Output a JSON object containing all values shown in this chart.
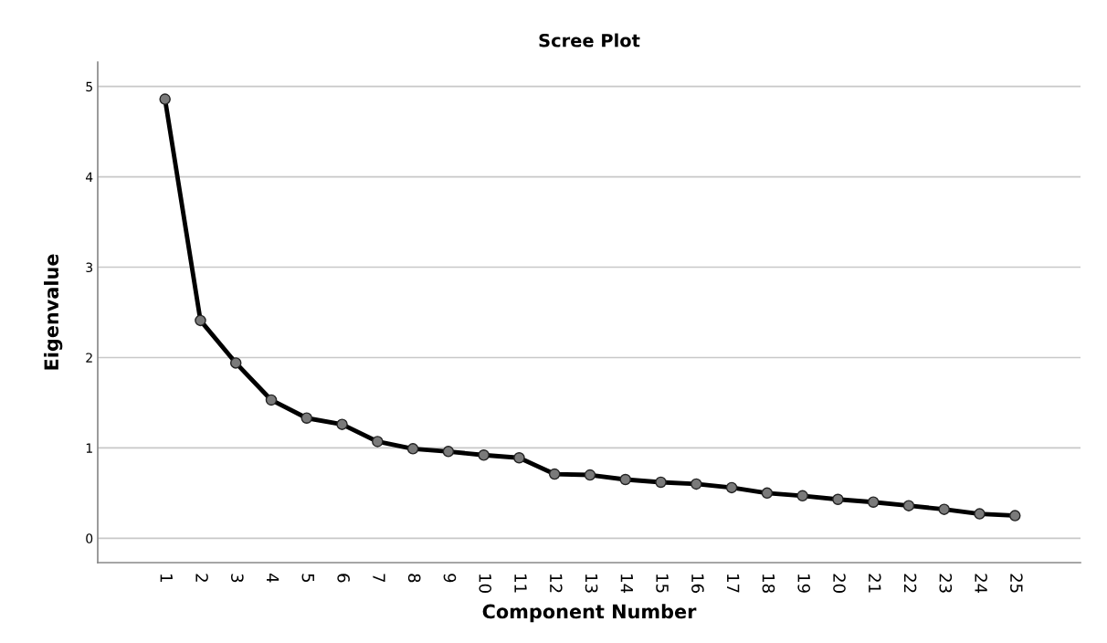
{
  "chart_data": {
    "type": "line",
    "title": "Scree Plot",
    "xlabel": "Component Number",
    "ylabel": "Eigenvalue",
    "categories": [
      "1",
      "2",
      "3",
      "4",
      "5",
      "6",
      "7",
      "8",
      "9",
      "10",
      "11",
      "12",
      "13",
      "14",
      "15",
      "16",
      "17",
      "18",
      "19",
      "20",
      "21",
      "22",
      "23",
      "24",
      "25"
    ],
    "series": [
      {
        "color": "#000000",
        "values": [
          4.86,
          2.41,
          1.94,
          1.53,
          1.33,
          1.26,
          1.07,
          0.99,
          0.96,
          0.92,
          0.89,
          0.71,
          0.7,
          0.65,
          0.62,
          0.6,
          0.56,
          0.5,
          0.47,
          0.43,
          0.4,
          0.36,
          0.32,
          0.27,
          0.25
        ]
      }
    ],
    "ylim": [
      -0.27,
      5.27
    ],
    "yticks": [
      0,
      1,
      2,
      3,
      4,
      5
    ],
    "grid": "y",
    "marker": "circle",
    "line_style": "solid"
  }
}
